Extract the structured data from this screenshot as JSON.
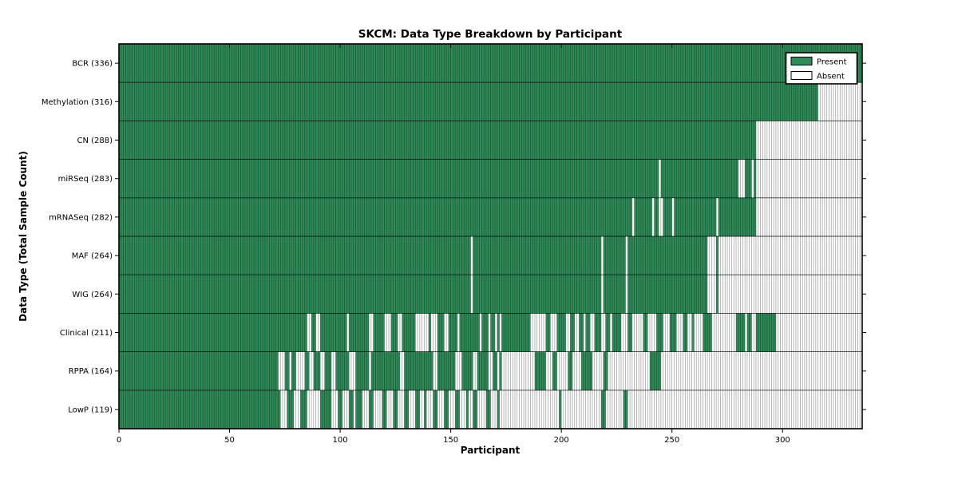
{
  "chart_data": {
    "type": "heatmap",
    "title": "SKCM: Data Type Breakdown by Participant",
    "xlabel": "Participant",
    "ylabel": "Data Type (Total Sample Count)",
    "x_ticks": [
      0,
      50,
      100,
      150,
      200,
      250,
      300
    ],
    "x_max": 336,
    "legend": {
      "position": "upper right",
      "entries": [
        {
          "label": "Present",
          "color": "#2f8b58"
        },
        {
          "label": "Absent",
          "color": "#ffffff"
        }
      ]
    },
    "colors": {
      "present": "#2f8b58",
      "absent": "#ffffff",
      "mesh_line": "rgba(0,0,0,0.38)",
      "row_line": "rgba(0,0,0,0.75)",
      "border": "#000000"
    },
    "rows": [
      {
        "name": "BCR",
        "label": "BCR (336)",
        "total": 336,
        "present_runs": [
          [
            0,
            336
          ]
        ]
      },
      {
        "name": "Methylation",
        "label": "Methylation (316)",
        "total": 316,
        "present_runs": [
          [
            0,
            316
          ]
        ]
      },
      {
        "name": "CN",
        "label": "CN (288)",
        "total": 288,
        "present_runs": [
          [
            0,
            288
          ]
        ]
      },
      {
        "name": "miRSeq",
        "label": "miRSeq (283)",
        "total": 283,
        "present_runs": [
          [
            0,
            244
          ],
          [
            245,
            280
          ],
          [
            283,
            286
          ],
          [
            287,
            288
          ]
        ]
      },
      {
        "name": "mRNASeq",
        "label": "mRNASeq (282)",
        "total": 282,
        "present_runs": [
          [
            0,
            232
          ],
          [
            233,
            241
          ],
          [
            242,
            244
          ],
          [
            246,
            250
          ],
          [
            251,
            270
          ],
          [
            271,
            288
          ]
        ]
      },
      {
        "name": "MAF",
        "label": "MAF (264)",
        "total": 264,
        "present_runs": [
          [
            0,
            159
          ],
          [
            160,
            218
          ],
          [
            219,
            229
          ],
          [
            230,
            266
          ],
          [
            270,
            271
          ]
        ]
      },
      {
        "name": "WIG",
        "label": "WIG (264)",
        "total": 264,
        "present_runs": [
          [
            0,
            159
          ],
          [
            160,
            218
          ],
          [
            219,
            229
          ],
          [
            230,
            266
          ],
          [
            270,
            271
          ]
        ]
      },
      {
        "name": "Clinical",
        "label": "Clinical (211)",
        "total": 211,
        "present_runs": [
          [
            0,
            85
          ],
          [
            87,
            89
          ],
          [
            91,
            103
          ],
          [
            104,
            113
          ],
          [
            115,
            120
          ],
          [
            123,
            126
          ],
          [
            128,
            134
          ],
          [
            140,
            141
          ],
          [
            144,
            147
          ],
          [
            149,
            153
          ],
          [
            154,
            163
          ],
          [
            164,
            167
          ],
          [
            168,
            170
          ],
          [
            171,
            172
          ],
          [
            173,
            186
          ],
          [
            193,
            195
          ],
          [
            198,
            202
          ],
          [
            204,
            206
          ],
          [
            208,
            210
          ],
          [
            211,
            213
          ],
          [
            215,
            218
          ],
          [
            220,
            222
          ],
          [
            223,
            227
          ],
          [
            230,
            232
          ],
          [
            237,
            239
          ],
          [
            243,
            246
          ],
          [
            249,
            252
          ],
          [
            255,
            257
          ],
          [
            259,
            260
          ],
          [
            264,
            268
          ],
          [
            279,
            283
          ],
          [
            284,
            286
          ],
          [
            288,
            297
          ]
        ]
      },
      {
        "name": "RPPA",
        "label": "RPPA (164)",
        "total": 164,
        "present_runs": [
          [
            0,
            72
          ],
          [
            75,
            77
          ],
          [
            78,
            80
          ],
          [
            84,
            86
          ],
          [
            88,
            91
          ],
          [
            93,
            96
          ],
          [
            98,
            104
          ],
          [
            107,
            113
          ],
          [
            114,
            127
          ],
          [
            129,
            142
          ],
          [
            144,
            152
          ],
          [
            155,
            160
          ],
          [
            162,
            167
          ],
          [
            169,
            171
          ],
          [
            172,
            173
          ],
          [
            188,
            193
          ],
          [
            196,
            198
          ],
          [
            203,
            205
          ],
          [
            209,
            214
          ],
          [
            219,
            221
          ],
          [
            240,
            245
          ]
        ]
      },
      {
        "name": "LowP",
        "label": "LowP (119)",
        "total": 119,
        "present_runs": [
          [
            0,
            73
          ],
          [
            76,
            79
          ],
          [
            82,
            85
          ],
          [
            91,
            96
          ],
          [
            99,
            101
          ],
          [
            104,
            106
          ],
          [
            107,
            110
          ],
          [
            113,
            115
          ],
          [
            119,
            121
          ],
          [
            124,
            126
          ],
          [
            129,
            131
          ],
          [
            134,
            136
          ],
          [
            138,
            139
          ],
          [
            142,
            144
          ],
          [
            147,
            149
          ],
          [
            152,
            154
          ],
          [
            157,
            158
          ],
          [
            160,
            162
          ],
          [
            166,
            168
          ],
          [
            171,
            172
          ],
          [
            199,
            200
          ],
          [
            218,
            220
          ],
          [
            228,
            230
          ]
        ]
      }
    ]
  }
}
